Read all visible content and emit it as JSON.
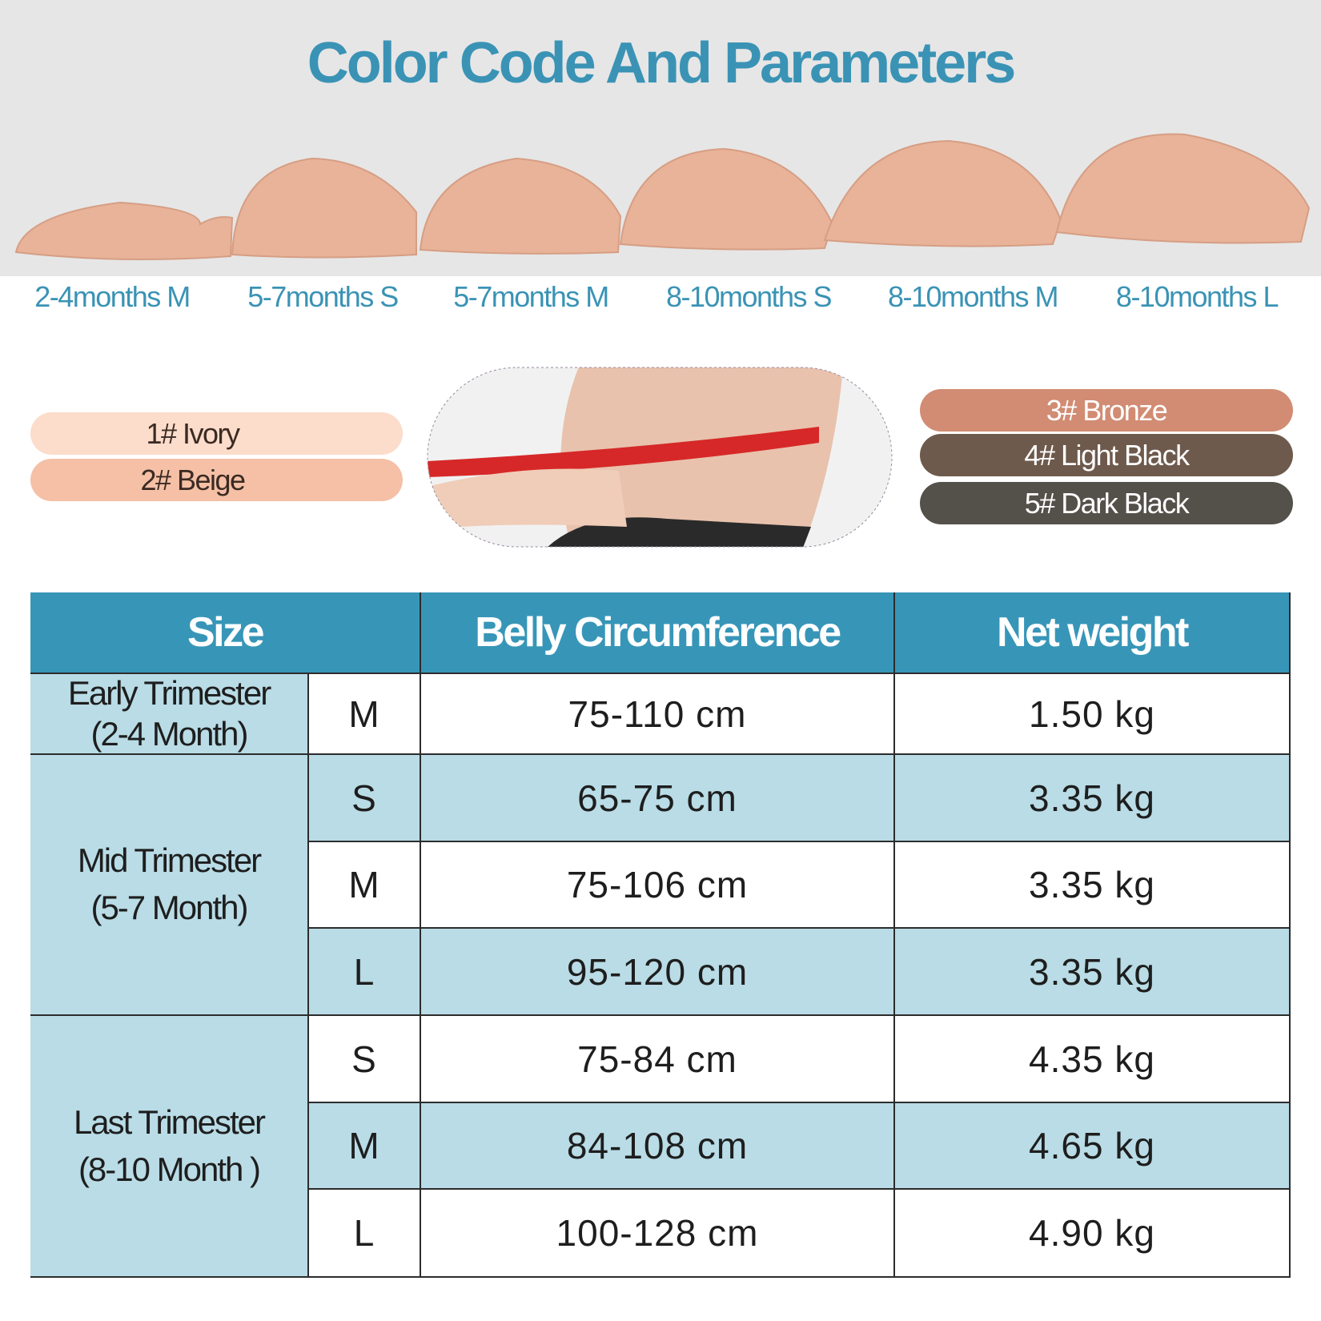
{
  "header": {
    "title": "Color Code And Parameters"
  },
  "sizes": [
    "2-4months M",
    "5-7months S",
    "5-7months M",
    "8-10months S",
    "8-10months M",
    "8-10months L"
  ],
  "colors_left": [
    {
      "label": "1# Ivory",
      "color": "#fcdccb"
    },
    {
      "label": "2# Beige",
      "color": "#f5c0a6"
    }
  ],
  "colors_right": [
    {
      "label": "3# Bronze",
      "color": "#d18c73"
    },
    {
      "label": "4# Light Black",
      "color": "#6e5a4c"
    },
    {
      "label": "5#  Dark Black",
      "color": "#54504a"
    }
  ],
  "table": {
    "header": [
      "Size",
      "Belly Circumference",
      "Net weight"
    ],
    "groups": [
      {
        "label": [
          "Early Trimester",
          "(2-4 Month)"
        ],
        "rows": [
          [
            "M",
            "75-110 cm",
            "1.50 kg"
          ]
        ]
      },
      {
        "label": [
          "Mid Trimester",
          "(5-7 Month)"
        ],
        "rows": [
          [
            "S",
            "65-75 cm",
            "3.35 kg"
          ],
          [
            "M",
            "75-106 cm",
            "3.35 kg"
          ],
          [
            "L",
            "95-120 cm",
            "3.35 kg"
          ]
        ]
      },
      {
        "label": [
          "Last Trimester",
          "(8-10 Month )"
        ],
        "rows": [
          [
            "S",
            "75-84 cm",
            "4.35 kg"
          ],
          [
            "M",
            "84-108 cm",
            "4.65 kg"
          ],
          [
            "L",
            "100-128 cm",
            "4.90 kg"
          ]
        ]
      }
    ]
  }
}
